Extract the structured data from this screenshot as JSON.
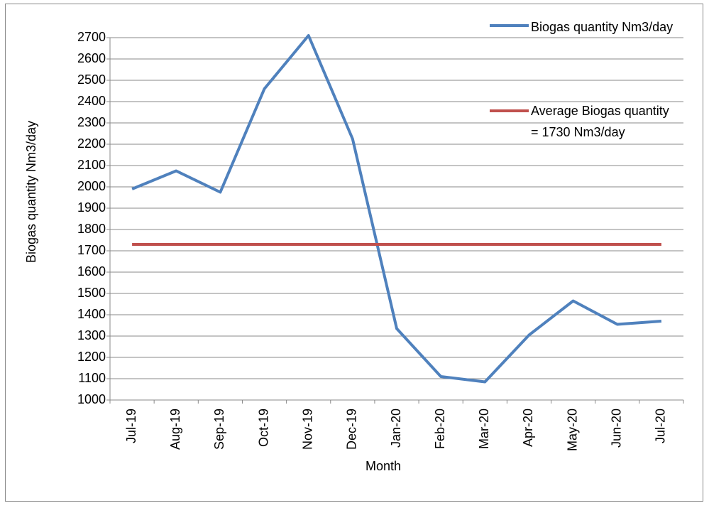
{
  "chart_data": {
    "type": "line",
    "y_label": "Biogas quantity Nm3/day",
    "x_label": "Month",
    "categories": [
      "Jul-19",
      "Aug-19",
      "Sep-19",
      "Oct-19",
      "Nov-19",
      "Dec-19",
      "Jan-20",
      "Feb-20",
      "Mar-20",
      "Apr-20",
      "May-20",
      "Jun-20",
      "Jul-20"
    ],
    "series": [
      {
        "name": "Biogas quantity Nm3/day",
        "color": "#4f81bd",
        "values": [
          1990,
          2075,
          1975,
          2460,
          2710,
          2225,
          1335,
          1110,
          1085,
          1305,
          1465,
          1355,
          1370
        ]
      },
      {
        "name": "Average Biogas quantity = 1730 Nm3/day",
        "color": "#c0504d",
        "values": [
          1730,
          1730,
          1730,
          1730,
          1730,
          1730,
          1730,
          1730,
          1730,
          1730,
          1730,
          1730,
          1730
        ]
      }
    ],
    "ylim": [
      1000,
      2700
    ],
    "yticks": [
      1000,
      1100,
      1200,
      1300,
      1400,
      1500,
      1600,
      1700,
      1800,
      1900,
      2000,
      2100,
      2200,
      2300,
      2400,
      2500,
      2600,
      2700
    ],
    "grid": true,
    "legend": "top-right"
  }
}
